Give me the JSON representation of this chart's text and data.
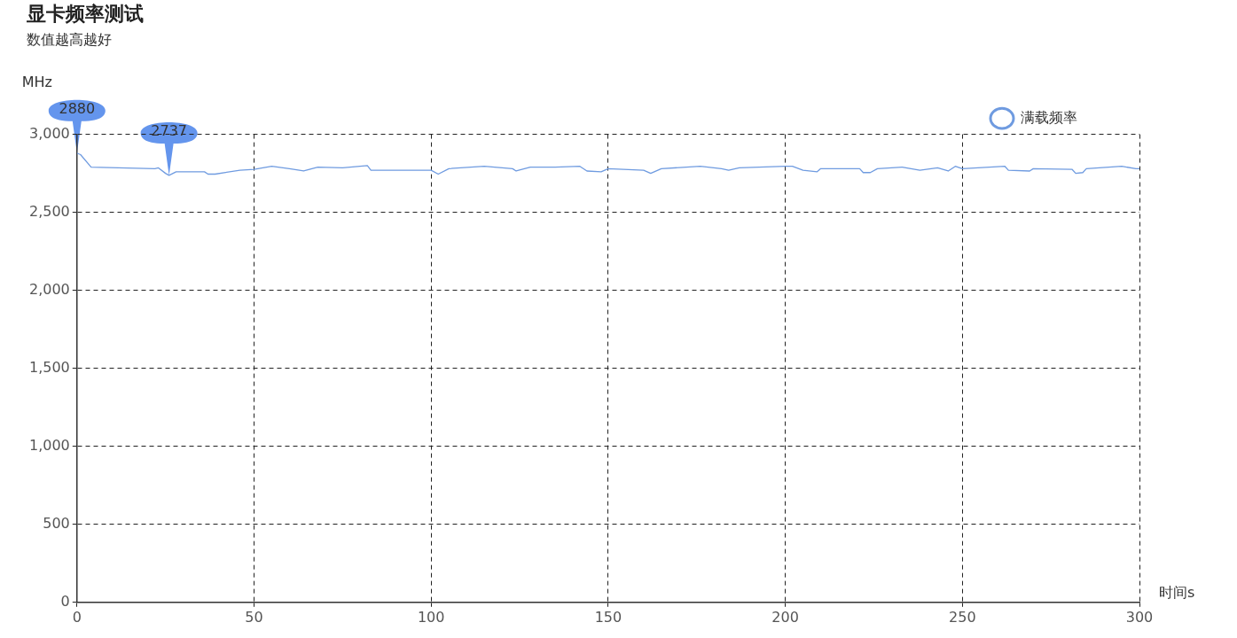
{
  "chart_data": {
    "type": "line",
    "title": "显卡频率测试",
    "subtitle": "数值越高越好",
    "xlabel": "时间s",
    "ylabel": "MHz",
    "xlim": [
      0,
      300
    ],
    "xticks": [
      0,
      50,
      100,
      150,
      200,
      250,
      300
    ],
    "ylim": [
      0,
      3000
    ],
    "yticks": [
      0,
      500,
      {
        "value": 1000,
        "label": "1,000"
      },
      {
        "value": 1500,
        "label": "1,500"
      },
      {
        "value": 2000,
        "label": "2,000"
      },
      {
        "value": 2500,
        "label": "2,500"
      },
      {
        "value": 3000,
        "label": "3,000"
      }
    ],
    "grid": true,
    "legend": "top right",
    "series": [
      {
        "name": "满载频率",
        "color": "#6f9be0",
        "x": [
          0,
          1,
          4,
          22,
          23,
          25,
          26,
          28,
          36,
          37,
          39,
          46,
          50,
          55,
          60,
          64,
          68,
          75,
          82,
          83,
          94,
          100,
          102,
          105,
          115,
          123,
          124,
          128,
          135,
          142,
          144,
          148,
          150,
          160,
          162,
          165,
          176,
          182,
          184,
          187,
          200,
          202,
          205,
          209,
          210,
          221,
          222,
          224,
          226,
          233,
          238,
          243,
          246,
          248,
          250,
          262,
          263,
          269,
          270,
          281,
          282,
          284,
          285,
          295,
          299,
          300
        ],
        "values": [
          2880,
          2870,
          2790,
          2780,
          2785,
          2750,
          2737,
          2760,
          2760,
          2745,
          2745,
          2770,
          2775,
          2795,
          2780,
          2765,
          2790,
          2785,
          2800,
          2770,
          2770,
          2770,
          2745,
          2780,
          2795,
          2780,
          2765,
          2790,
          2790,
          2795,
          2765,
          2760,
          2780,
          2770,
          2750,
          2780,
          2795,
          2780,
          2770,
          2785,
          2795,
          2795,
          2770,
          2760,
          2780,
          2780,
          2755,
          2755,
          2780,
          2790,
          2770,
          2785,
          2765,
          2795,
          2780,
          2795,
          2770,
          2765,
          2780,
          2775,
          2750,
          2755,
          2780,
          2795,
          2780,
          2780
        ]
      }
    ],
    "annotations": [
      {
        "text": "2880",
        "x": 0,
        "y": 2880
      },
      {
        "text": "2737",
        "x": 26,
        "y": 2737
      }
    ]
  }
}
